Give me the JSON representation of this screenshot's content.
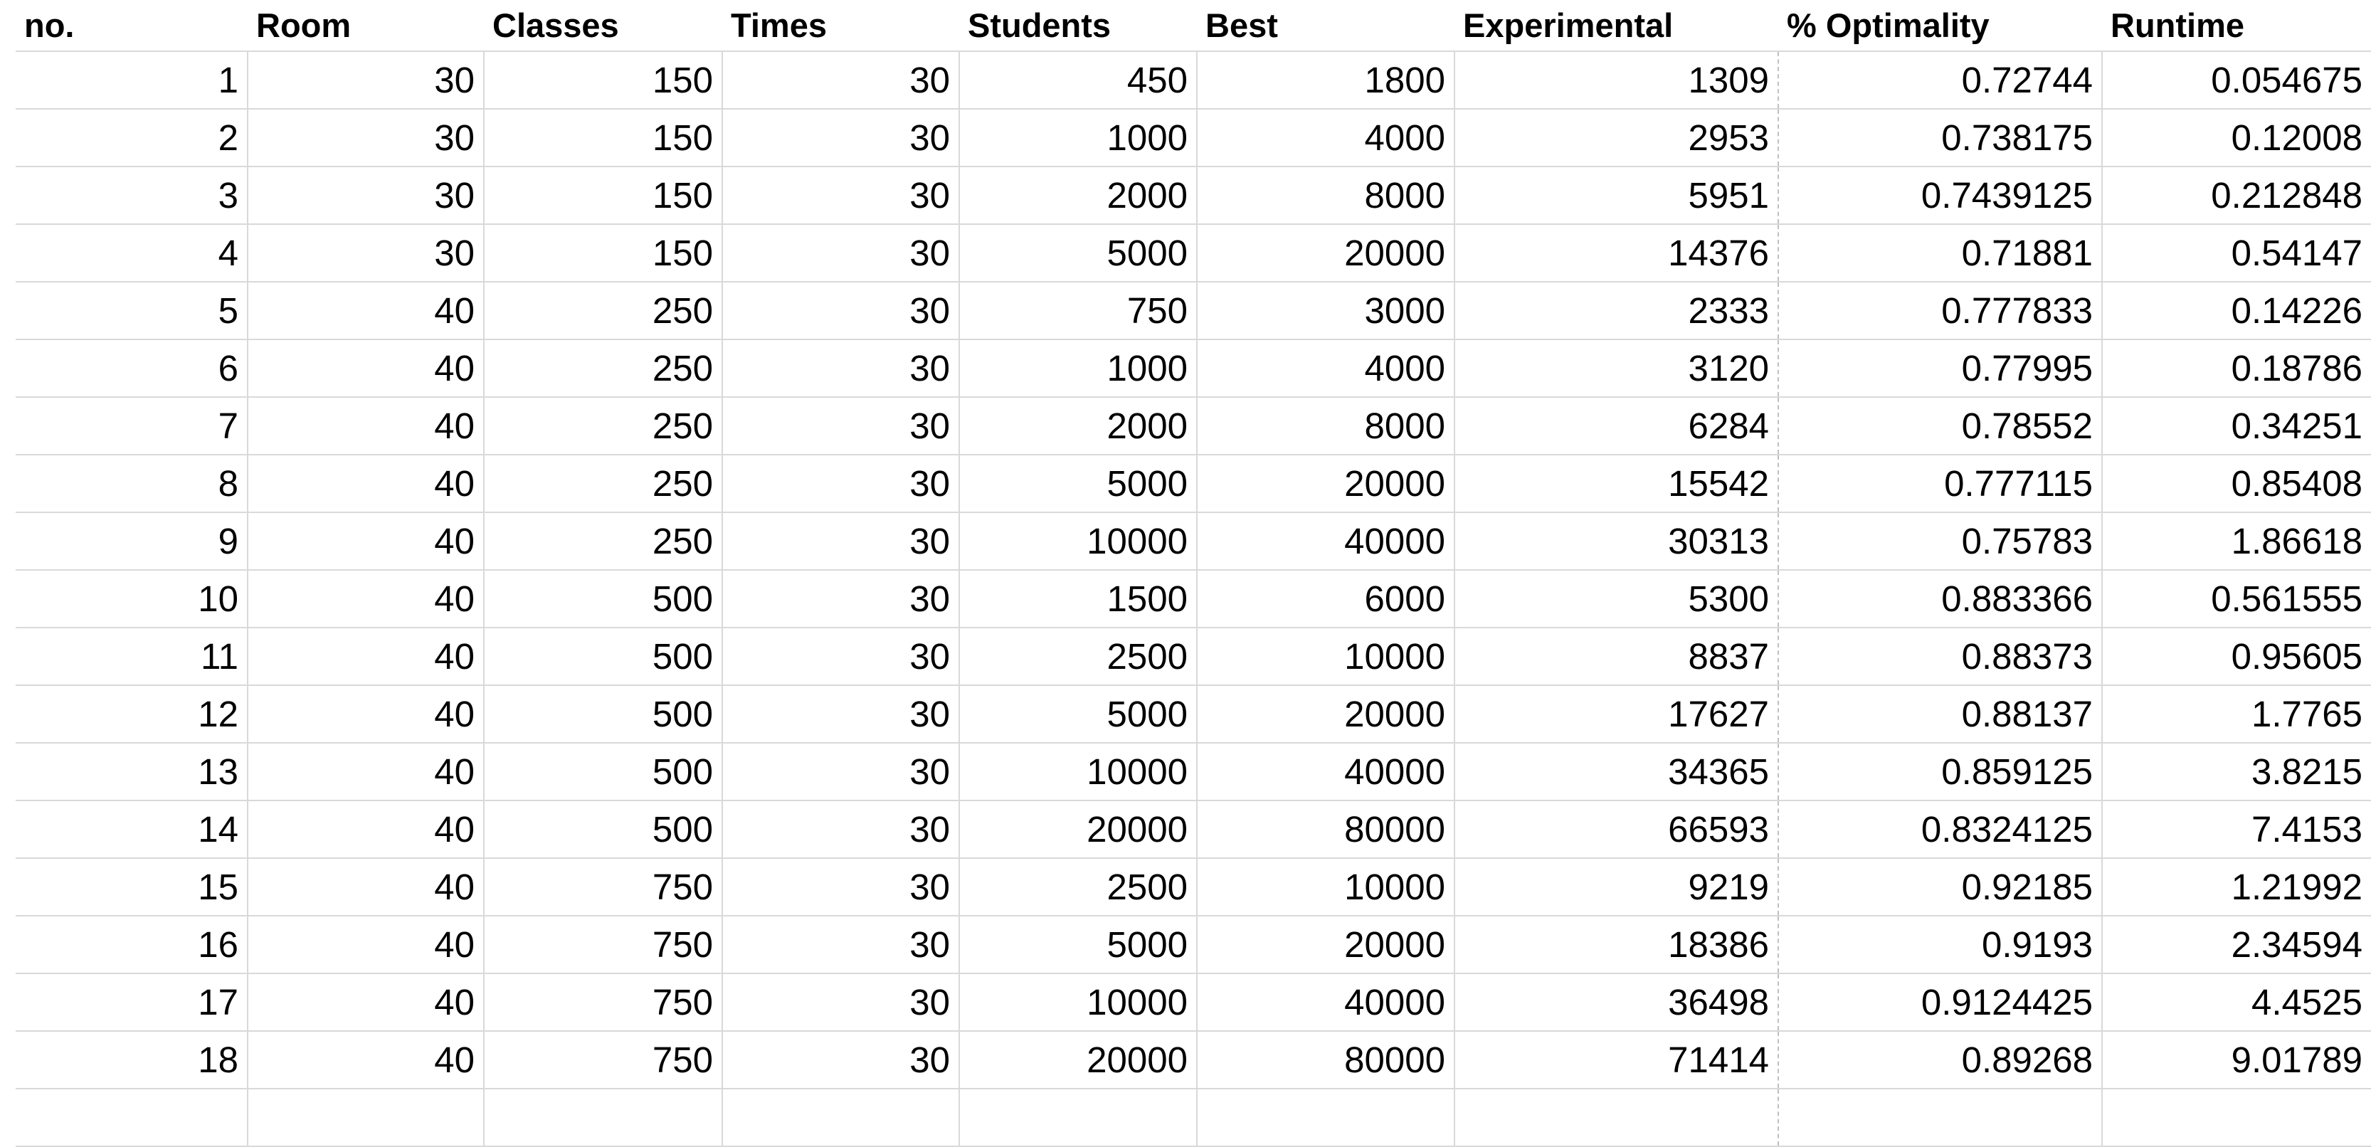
{
  "table": {
    "headers": [
      "no.",
      "Room",
      "Classes",
      "Times",
      "Students",
      "Best",
      "Experimental",
      "% Optimality",
      "Runtime"
    ],
    "rows": [
      [
        "1",
        "30",
        "150",
        "30",
        "450",
        "1800",
        "1309",
        "0.72744",
        "0.054675"
      ],
      [
        "2",
        "30",
        "150",
        "30",
        "1000",
        "4000",
        "2953",
        "0.738175",
        "0.12008"
      ],
      [
        "3",
        "30",
        "150",
        "30",
        "2000",
        "8000",
        "5951",
        "0.7439125",
        "0.212848"
      ],
      [
        "4",
        "30",
        "150",
        "30",
        "5000",
        "20000",
        "14376",
        "0.71881",
        "0.54147"
      ],
      [
        "5",
        "40",
        "250",
        "30",
        "750",
        "3000",
        "2333",
        "0.777833",
        "0.14226"
      ],
      [
        "6",
        "40",
        "250",
        "30",
        "1000",
        "4000",
        "3120",
        "0.77995",
        "0.18786"
      ],
      [
        "7",
        "40",
        "250",
        "30",
        "2000",
        "8000",
        "6284",
        "0.78552",
        "0.34251"
      ],
      [
        "8",
        "40",
        "250",
        "30",
        "5000",
        "20000",
        "15542",
        "0.777115",
        "0.85408"
      ],
      [
        "9",
        "40",
        "250",
        "30",
        "10000",
        "40000",
        "30313",
        "0.75783",
        "1.86618"
      ],
      [
        "10",
        "40",
        "500",
        "30",
        "1500",
        "6000",
        "5300",
        "0.883366",
        "0.561555"
      ],
      [
        "11",
        "40",
        "500",
        "30",
        "2500",
        "10000",
        "8837",
        "0.88373",
        "0.95605"
      ],
      [
        "12",
        "40",
        "500",
        "30",
        "5000",
        "20000",
        "17627",
        "0.88137",
        "1.7765"
      ],
      [
        "13",
        "40",
        "500",
        "30",
        "10000",
        "40000",
        "34365",
        "0.859125",
        "3.8215"
      ],
      [
        "14",
        "40",
        "500",
        "30",
        "20000",
        "80000",
        "66593",
        "0.8324125",
        "7.4153"
      ],
      [
        "15",
        "40",
        "750",
        "30",
        "2500",
        "10000",
        "9219",
        "0.92185",
        "1.21992"
      ],
      [
        "16",
        "40",
        "750",
        "30",
        "5000",
        "20000",
        "18386",
        "0.9193",
        "2.34594"
      ],
      [
        "17",
        "40",
        "750",
        "30",
        "10000",
        "40000",
        "36498",
        "0.9124425",
        "4.4525"
      ],
      [
        "18",
        "40",
        "750",
        "30",
        "20000",
        "80000",
        "71414",
        "0.89268",
        "9.01789"
      ]
    ]
  }
}
